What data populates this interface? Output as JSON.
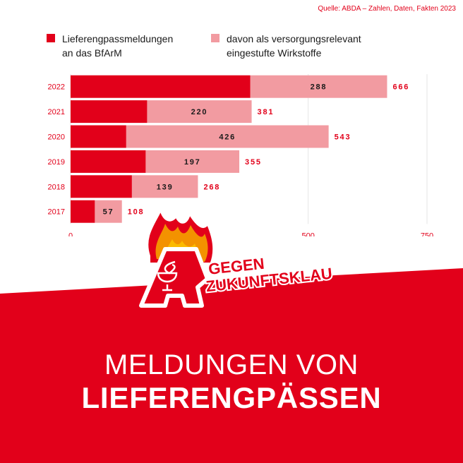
{
  "source": "Quelle: ABDA – Zahlen, Daten, Fakten 2023",
  "colors": {
    "primary": "#e2001a",
    "secondary": "#f29ba1",
    "grid": "#e6e6e6",
    "white": "#ffffff",
    "flame_orange": "#f39200",
    "flame_yellow": "#fbba00"
  },
  "legend": [
    {
      "line1": "Lieferengpassmeldungen",
      "line2": "an das BfArM"
    },
    {
      "line1": "davon als versorgungsrelevant",
      "line2": "eingestufte Wirkstoffe"
    }
  ],
  "chart_data": {
    "type": "bar",
    "orientation": "horizontal",
    "categories": [
      "2022",
      "2021",
      "2020",
      "2019",
      "2018",
      "2017"
    ],
    "series": [
      {
        "name": "Lieferengpassmeldungen an das BfArM",
        "values": [
          666,
          381,
          543,
          355,
          268,
          108
        ]
      },
      {
        "name": "davon als versorgungsrelevant eingestufte Wirkstoffe",
        "values": [
          288,
          220,
          426,
          197,
          139,
          57
        ]
      }
    ],
    "xlim": [
      0,
      750
    ],
    "xticks": [
      0,
      500,
      750
    ],
    "grid": true,
    "legend_position": "top"
  },
  "logo": {
    "line1": "GEGEN",
    "line2": "ZUKUNFTSKLAU",
    "letter": "A",
    "icon": "pharmacy-bowl-of-hygieia-icon"
  },
  "headline": {
    "line1": "MELDUNGEN VON",
    "line2": "LIEFERENGPÄSSEN"
  }
}
